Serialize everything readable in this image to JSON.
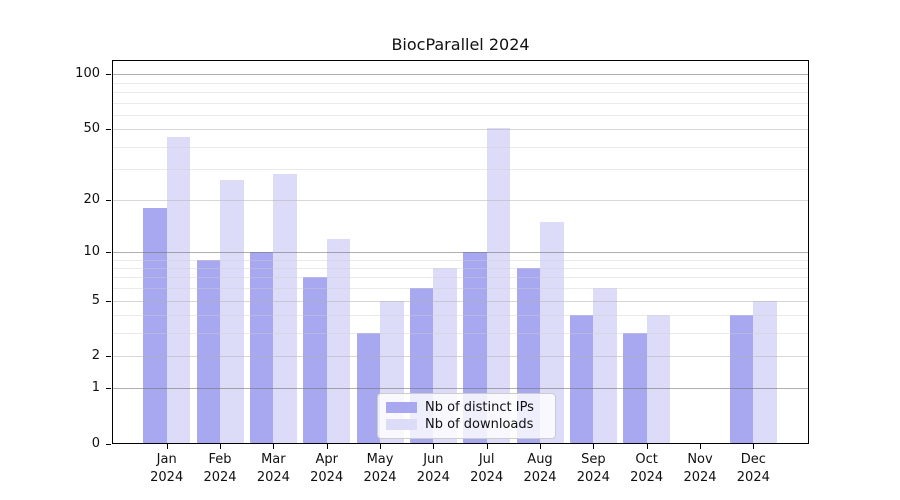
{
  "chart_data": {
    "type": "bar",
    "title": "BiocParallel 2024",
    "months": [
      "Jan",
      "Feb",
      "Mar",
      "Apr",
      "May",
      "Jun",
      "Jul",
      "Aug",
      "Sep",
      "Oct",
      "Nov",
      "Dec"
    ],
    "year": "2024",
    "categories": [
      "Jan 2024",
      "Feb 2024",
      "Mar 2024",
      "Apr 2024",
      "May 2024",
      "Jun 2024",
      "Jul 2024",
      "Aug 2024",
      "Sep 2024",
      "Oct 2024",
      "Nov 2024",
      "Dec 2024"
    ],
    "series": [
      {
        "name": "Nb of distinct IPs",
        "color": "#a8a8f0",
        "values": [
          18,
          9,
          10,
          7,
          3,
          6,
          10,
          8,
          4,
          3,
          0,
          4
        ]
      },
      {
        "name": "Nb of downloads",
        "color": "#dcdcf8",
        "values": [
          45,
          26,
          28,
          12,
          5,
          8,
          51,
          15,
          6,
          4,
          0,
          5
        ]
      }
    ],
    "y_scale": "log1p",
    "y_ticks": [
      0,
      1,
      2,
      5,
      10,
      20,
      50,
      100
    ],
    "grid_values_mid": [
      2,
      5,
      20,
      50
    ],
    "grid_values_major": [
      1,
      10,
      100
    ],
    "grid_values_minor": [
      3,
      4,
      6,
      7,
      8,
      9,
      30,
      40,
      60,
      70,
      80,
      90
    ],
    "ylim": [
      0,
      120
    ],
    "grid": true,
    "legend_position": "lower center"
  }
}
